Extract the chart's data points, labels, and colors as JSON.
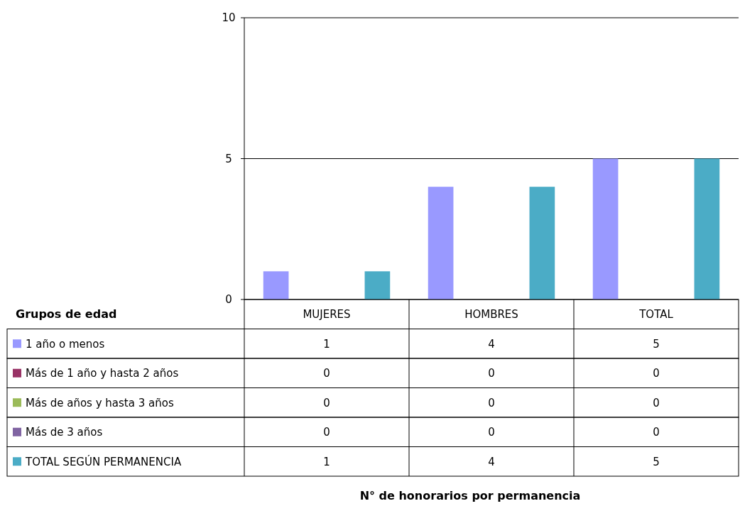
{
  "chart_data": {
    "type": "bar",
    "title": "N° de honorarios por permanencia",
    "legend_title": "Grupos de edad",
    "categories": [
      "MUJERES",
      "HOMBRES",
      "TOTAL"
    ],
    "series": [
      {
        "name": "1 año o menos",
        "color": "#9999ff",
        "values": [
          1,
          4,
          5
        ]
      },
      {
        "name": "Más de 1 año y hasta 2 años",
        "color": "#993366",
        "values": [
          0,
          0,
          0
        ]
      },
      {
        "name": "Más de  años y hasta 3 años",
        "color": "#9bbb59",
        "values": [
          0,
          0,
          0
        ]
      },
      {
        "name": "Más de 3 años",
        "color": "#8064a2",
        "values": [
          0,
          0,
          0
        ]
      },
      {
        "name": "TOTAL SEGÚN PERMANENCIA",
        "color": "#4bacc6",
        "values": [
          1,
          4,
          5
        ]
      }
    ],
    "ylim": [
      0,
      10
    ],
    "yticks": [
      0,
      5,
      10
    ],
    "grid": "y",
    "legend": "bottom",
    "data_labels": true
  }
}
